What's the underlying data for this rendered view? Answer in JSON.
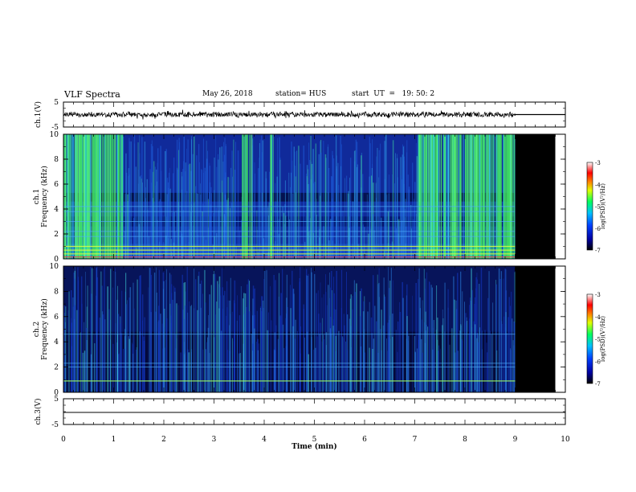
{
  "header": {
    "title": "VLF Spectra",
    "date": "May 26, 2018",
    "station": "station= HUS",
    "start": "start  UT  =   19: 50: 2"
  },
  "colors": {
    "spectrogram_dark": "#000014",
    "spectrogram_blue": "#1030d0",
    "spectrogram_cyan": "#30c8e8",
    "spectrogram_green": "#40e060",
    "fill_after_end": "#000000"
  },
  "chart_data": [
    {
      "type": "line",
      "panel": "waveform-ch1",
      "ylabel": "ch.1(V)",
      "ylim": [
        -5,
        5
      ],
      "yticks": [
        "5",
        "-5"
      ],
      "xlim": [
        0,
        10
      ],
      "signal_end_min": 9.0,
      "level_after_end": 0
    },
    {
      "type": "heatmap",
      "panel": "spectrogram-ch1",
      "ylabel": "ch.1\nFrequency (kHz)",
      "ylim": [
        0,
        10
      ],
      "yticks": [
        "0",
        "2",
        "4",
        "6",
        "8",
        "10"
      ],
      "xlim": [
        0,
        10
      ],
      "data_end_min": 9.0,
      "high_activity_intervals_min": [
        [
          0,
          1.2
        ],
        [
          3.55,
          3.75
        ],
        [
          4.1,
          4.2
        ],
        [
          7.05,
          9.0
        ]
      ],
      "horizontal_lines_khz": [
        0.4,
        0.7,
        1.0,
        1.8,
        2.2,
        3.0,
        3.8,
        4.2
      ],
      "colorbar": {
        "label": "log(PSD)(V²/Hz)",
        "range": [
          -7,
          -3
        ],
        "ticks": [
          "-3",
          "-4",
          "-5",
          "-6",
          "-7"
        ]
      }
    },
    {
      "type": "heatmap",
      "panel": "spectrogram-ch2",
      "ylabel": "ch.2\nFrequency (kHz)",
      "ylim": [
        0,
        10
      ],
      "yticks": [
        "0",
        "2",
        "4",
        "6",
        "8",
        "10"
      ],
      "xlim": [
        0,
        10
      ],
      "data_end_min": 9.0,
      "horizontal_lines_khz": [
        0.9,
        2.0,
        2.3,
        4.6
      ],
      "colorbar": {
        "label": "log(PSD)(V²/Hz)",
        "range": [
          -7,
          -3
        ],
        "ticks": [
          "-3",
          "-4",
          "-5",
          "-6",
          "-7"
        ]
      }
    },
    {
      "type": "line",
      "panel": "waveform-ch3",
      "ylabel": "ch.3(V)",
      "ylim": [
        -5,
        5
      ],
      "yticks": [
        "5",
        "-5"
      ],
      "xlim": [
        0,
        10
      ],
      "constant_value": 0
    }
  ],
  "xaxis": {
    "label": "Time  (min)",
    "ticks": [
      "0",
      "1",
      "2",
      "3",
      "4",
      "5",
      "6",
      "7",
      "8",
      "9",
      "10"
    ]
  }
}
